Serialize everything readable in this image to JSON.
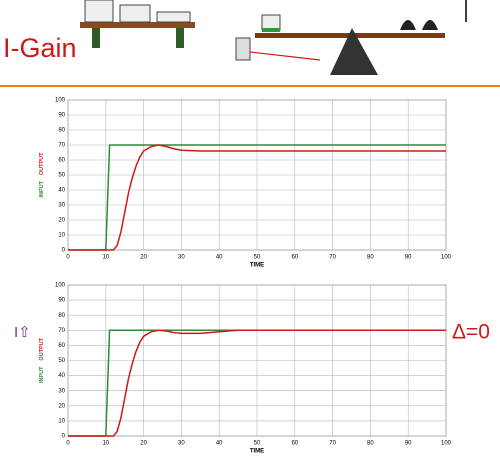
{
  "slide": {
    "title": "I-Gain",
    "left_note": "I⇧",
    "right_note": "Δ=0"
  },
  "chart_data": [
    {
      "type": "line",
      "xlabel": "TIME",
      "xlim": [
        0,
        100
      ],
      "ylim": [
        0,
        100
      ],
      "xticks": [
        0,
        10,
        20,
        30,
        40,
        50,
        60,
        70,
        80,
        90,
        100
      ],
      "yticks": [
        0,
        10,
        20,
        30,
        40,
        50,
        60,
        70,
        80,
        90,
        100
      ],
      "grid": true,
      "series": [
        {
          "name": "INPUT",
          "color": "#2e8b3a",
          "x": [
            0,
            10,
            11,
            100
          ],
          "values": [
            0,
            0,
            70,
            70
          ]
        },
        {
          "name": "OUTPUT",
          "color": "#d01818",
          "x": [
            0,
            12,
            13,
            14,
            15,
            16,
            17,
            18,
            19,
            20,
            22,
            24,
            26,
            28,
            30,
            35,
            40,
            50,
            100
          ],
          "values": [
            0,
            0,
            3,
            12,
            25,
            38,
            48,
            56,
            62,
            66,
            69,
            70,
            69,
            67.5,
            66.5,
            66,
            66,
            66,
            66
          ]
        }
      ]
    },
    {
      "type": "line",
      "xlabel": "TIME",
      "xlim": [
        0,
        100
      ],
      "ylim": [
        0,
        100
      ],
      "xticks": [
        0,
        10,
        20,
        30,
        40,
        50,
        60,
        70,
        80,
        90,
        100
      ],
      "yticks": [
        0,
        10,
        20,
        30,
        40,
        50,
        60,
        70,
        80,
        90,
        100
      ],
      "grid": true,
      "series": [
        {
          "name": "INPUT",
          "color": "#2e8b3a",
          "x": [
            0,
            10,
            11,
            100
          ],
          "values": [
            0,
            0,
            70,
            70
          ]
        },
        {
          "name": "OUTPUT",
          "color": "#d01818",
          "x": [
            0,
            12,
            13,
            14,
            15,
            16,
            17,
            18,
            19,
            20,
            22,
            24,
            26,
            28,
            30,
            35,
            40,
            45,
            50,
            100
          ],
          "values": [
            0,
            0,
            3,
            12,
            25,
            38,
            48,
            56,
            62,
            66,
            69,
            70,
            69.5,
            68.5,
            68,
            68,
            69,
            70,
            70,
            70
          ]
        }
      ]
    }
  ]
}
